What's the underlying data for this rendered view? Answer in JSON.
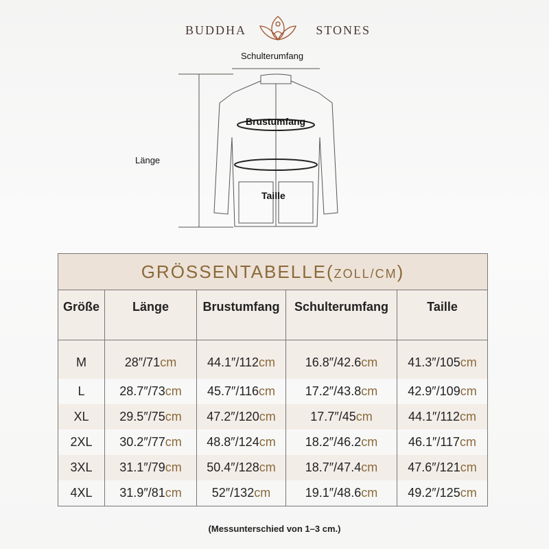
{
  "brand": {
    "left": "BUDDHA",
    "right": "STONES"
  },
  "diagram": {
    "shoulder": "Schulterumfang",
    "chest": "Brustumfang",
    "length": "Länge",
    "waist": "Taille"
  },
  "table": {
    "title": "GRÖSSENTABELLE(",
    "title_unit": "ZOLL/CM",
    "title_close": ")",
    "headers": [
      "Größe",
      "Länge",
      "Brustumfang",
      "Schulterumfang",
      "Taille"
    ],
    "rows": [
      {
        "size": "M",
        "values": [
          [
            "28″/71",
            "cm"
          ],
          [
            "44.1″/112",
            "cm"
          ],
          [
            "16.8″/42.6",
            "cm"
          ],
          [
            "41.3″/105",
            "cm"
          ]
        ]
      },
      {
        "size": "L",
        "values": [
          [
            "28.7″/73",
            "cm"
          ],
          [
            "45.7″/116",
            "cm"
          ],
          [
            "17.2″/43.8",
            "cm"
          ],
          [
            "42.9″/109",
            "cm"
          ]
        ]
      },
      {
        "size": "XL",
        "values": [
          [
            "29.5″/75",
            "cm"
          ],
          [
            "47.2″/120",
            "cm"
          ],
          [
            "17.7″/45",
            "cm"
          ],
          [
            "44.1″/112",
            "cm"
          ]
        ]
      },
      {
        "size": "2XL",
        "values": [
          [
            "30.2″/77",
            "cm"
          ],
          [
            "48.8″/124",
            "cm"
          ],
          [
            "18.2″/46.2",
            "cm"
          ],
          [
            "46.1″/117",
            "cm"
          ]
        ]
      },
      {
        "size": "3XL",
        "values": [
          [
            "31.1″/79",
            "cm"
          ],
          [
            "50.4″/128",
            "cm"
          ],
          [
            "18.7″/47.4",
            "cm"
          ],
          [
            "47.6″/121",
            "cm"
          ]
        ]
      },
      {
        "size": "4XL",
        "values": [
          [
            "31.9″/81",
            "cm"
          ],
          [
            "52″/132",
            "cm"
          ],
          [
            "19.1″/48.6",
            "cm"
          ],
          [
            "49.2″/125",
            "cm"
          ]
        ]
      }
    ]
  },
  "note": "(Messunterschied von 1–3 cm.)"
}
